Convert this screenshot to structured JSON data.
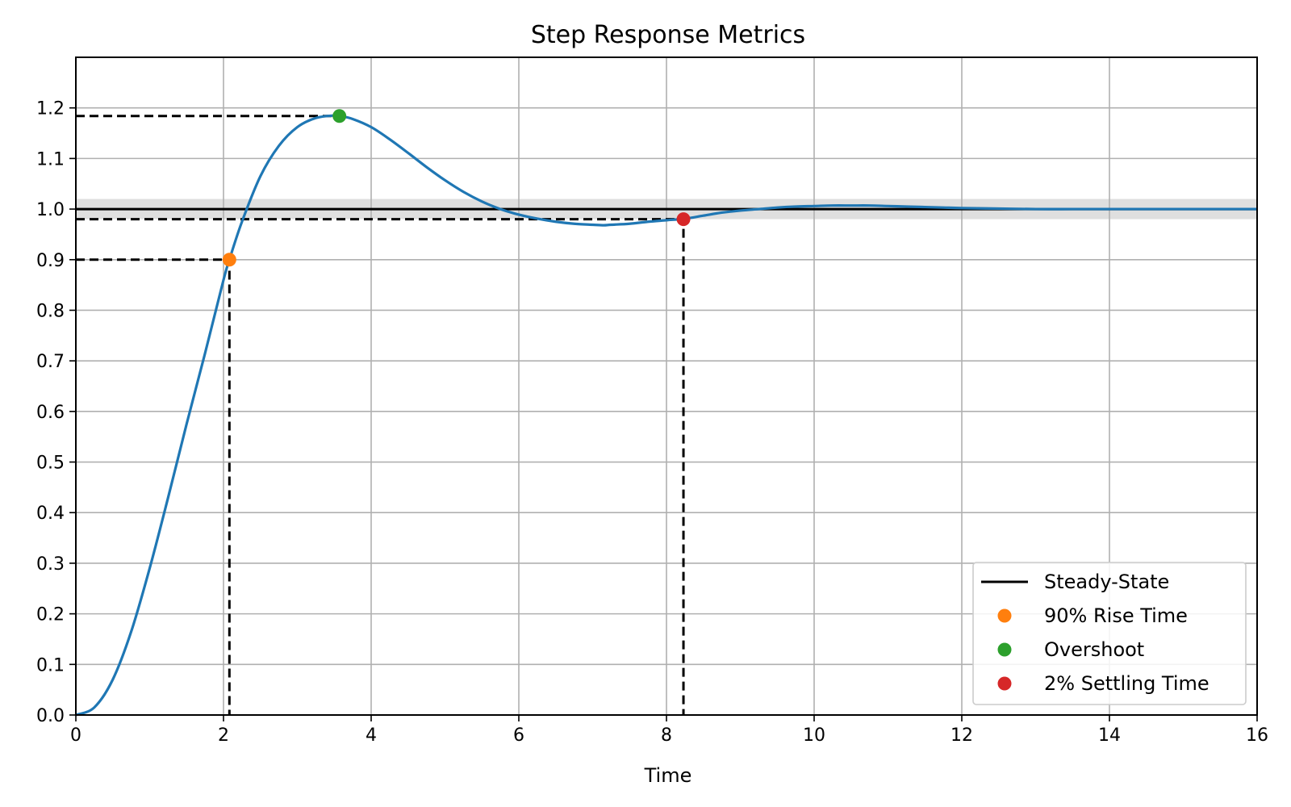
{
  "chart_data": {
    "type": "line",
    "title": "Step Response Metrics",
    "xlabel": "Time",
    "ylabel": "",
    "xlim": [
      0,
      16
    ],
    "ylim": [
      0,
      1.3
    ],
    "x_ticks": [
      0,
      2,
      4,
      6,
      8,
      10,
      12,
      14,
      16
    ],
    "y_ticks": [
      0.0,
      0.1,
      0.2,
      0.3,
      0.4,
      0.5,
      0.6,
      0.7,
      0.8,
      0.9,
      1.0,
      1.1,
      1.2
    ],
    "x_tick_labels": [
      "0",
      "2",
      "4",
      "6",
      "8",
      "10",
      "12",
      "14",
      "16"
    ],
    "y_tick_labels": [
      "0.0",
      "0.1",
      "0.2",
      "0.3",
      "0.4",
      "0.5",
      "0.6",
      "0.7",
      "0.8",
      "0.9",
      "1.0",
      "1.1",
      "1.2"
    ],
    "grid": true,
    "legend_position": "bottom-right",
    "response": {
      "x": [
        0,
        0.25,
        0.5,
        0.75,
        1.0,
        1.25,
        1.5,
        1.75,
        2.0,
        2.08,
        2.25,
        2.5,
        2.75,
        3.0,
        3.25,
        3.5,
        3.58,
        3.75,
        4.0,
        4.25,
        4.5,
        4.75,
        5.0,
        5.25,
        5.5,
        5.75,
        6.0,
        6.25,
        6.5,
        6.75,
        7.0,
        7.15,
        7.25,
        7.5,
        7.75,
        8.0,
        8.25,
        8.5,
        8.75,
        9.0,
        9.25,
        9.5,
        9.75,
        10.0,
        10.25,
        10.5,
        10.75,
        11.0,
        11.25,
        11.5,
        11.75,
        12.0,
        12.5,
        13.0,
        13.5,
        14.0,
        14.5,
        15.0,
        15.5,
        16.0
      ],
      "y": [
        0.0,
        0.015,
        0.07,
        0.165,
        0.29,
        0.43,
        0.575,
        0.715,
        0.86,
        0.9,
        0.975,
        1.065,
        1.125,
        1.162,
        1.18,
        1.185,
        1.184,
        1.178,
        1.162,
        1.138,
        1.111,
        1.083,
        1.057,
        1.034,
        1.015,
        1.0,
        0.989,
        0.981,
        0.975,
        0.971,
        0.969,
        0.968,
        0.969,
        0.971,
        0.975,
        0.978,
        0.981,
        0.987,
        0.993,
        0.997,
        1.0,
        1.003,
        1.005,
        1.006,
        1.007,
        1.007,
        1.007,
        1.006,
        1.005,
        1.004,
        1.003,
        1.002,
        1.001,
        1.0,
        1.0,
        1.0,
        1.0,
        1.0,
        1.0,
        1.0
      ],
      "color": "#1f77b4"
    },
    "steady_state": 1.0,
    "tolerance_band": [
      0.98,
      1.02
    ],
    "band_color": "#d9d9d9",
    "metrics": {
      "rise_time": {
        "x": 2.08,
        "y": 0.9,
        "color": "#ff7f0e"
      },
      "overshoot": {
        "x": 3.57,
        "y": 1.184,
        "color": "#2ca02c"
      },
      "settling_time": {
        "x": 8.23,
        "y": 0.98,
        "color": "#d62728"
      }
    },
    "legend": [
      {
        "label": "Steady-State",
        "marker": "line",
        "color": "#000000"
      },
      {
        "label": "90% Rise Time",
        "marker": "dot",
        "color": "#ff7f0e"
      },
      {
        "label": "Overshoot",
        "marker": "dot",
        "color": "#2ca02c"
      },
      {
        "label": "2% Settling Time",
        "marker": "dot",
        "color": "#d62728"
      }
    ]
  }
}
